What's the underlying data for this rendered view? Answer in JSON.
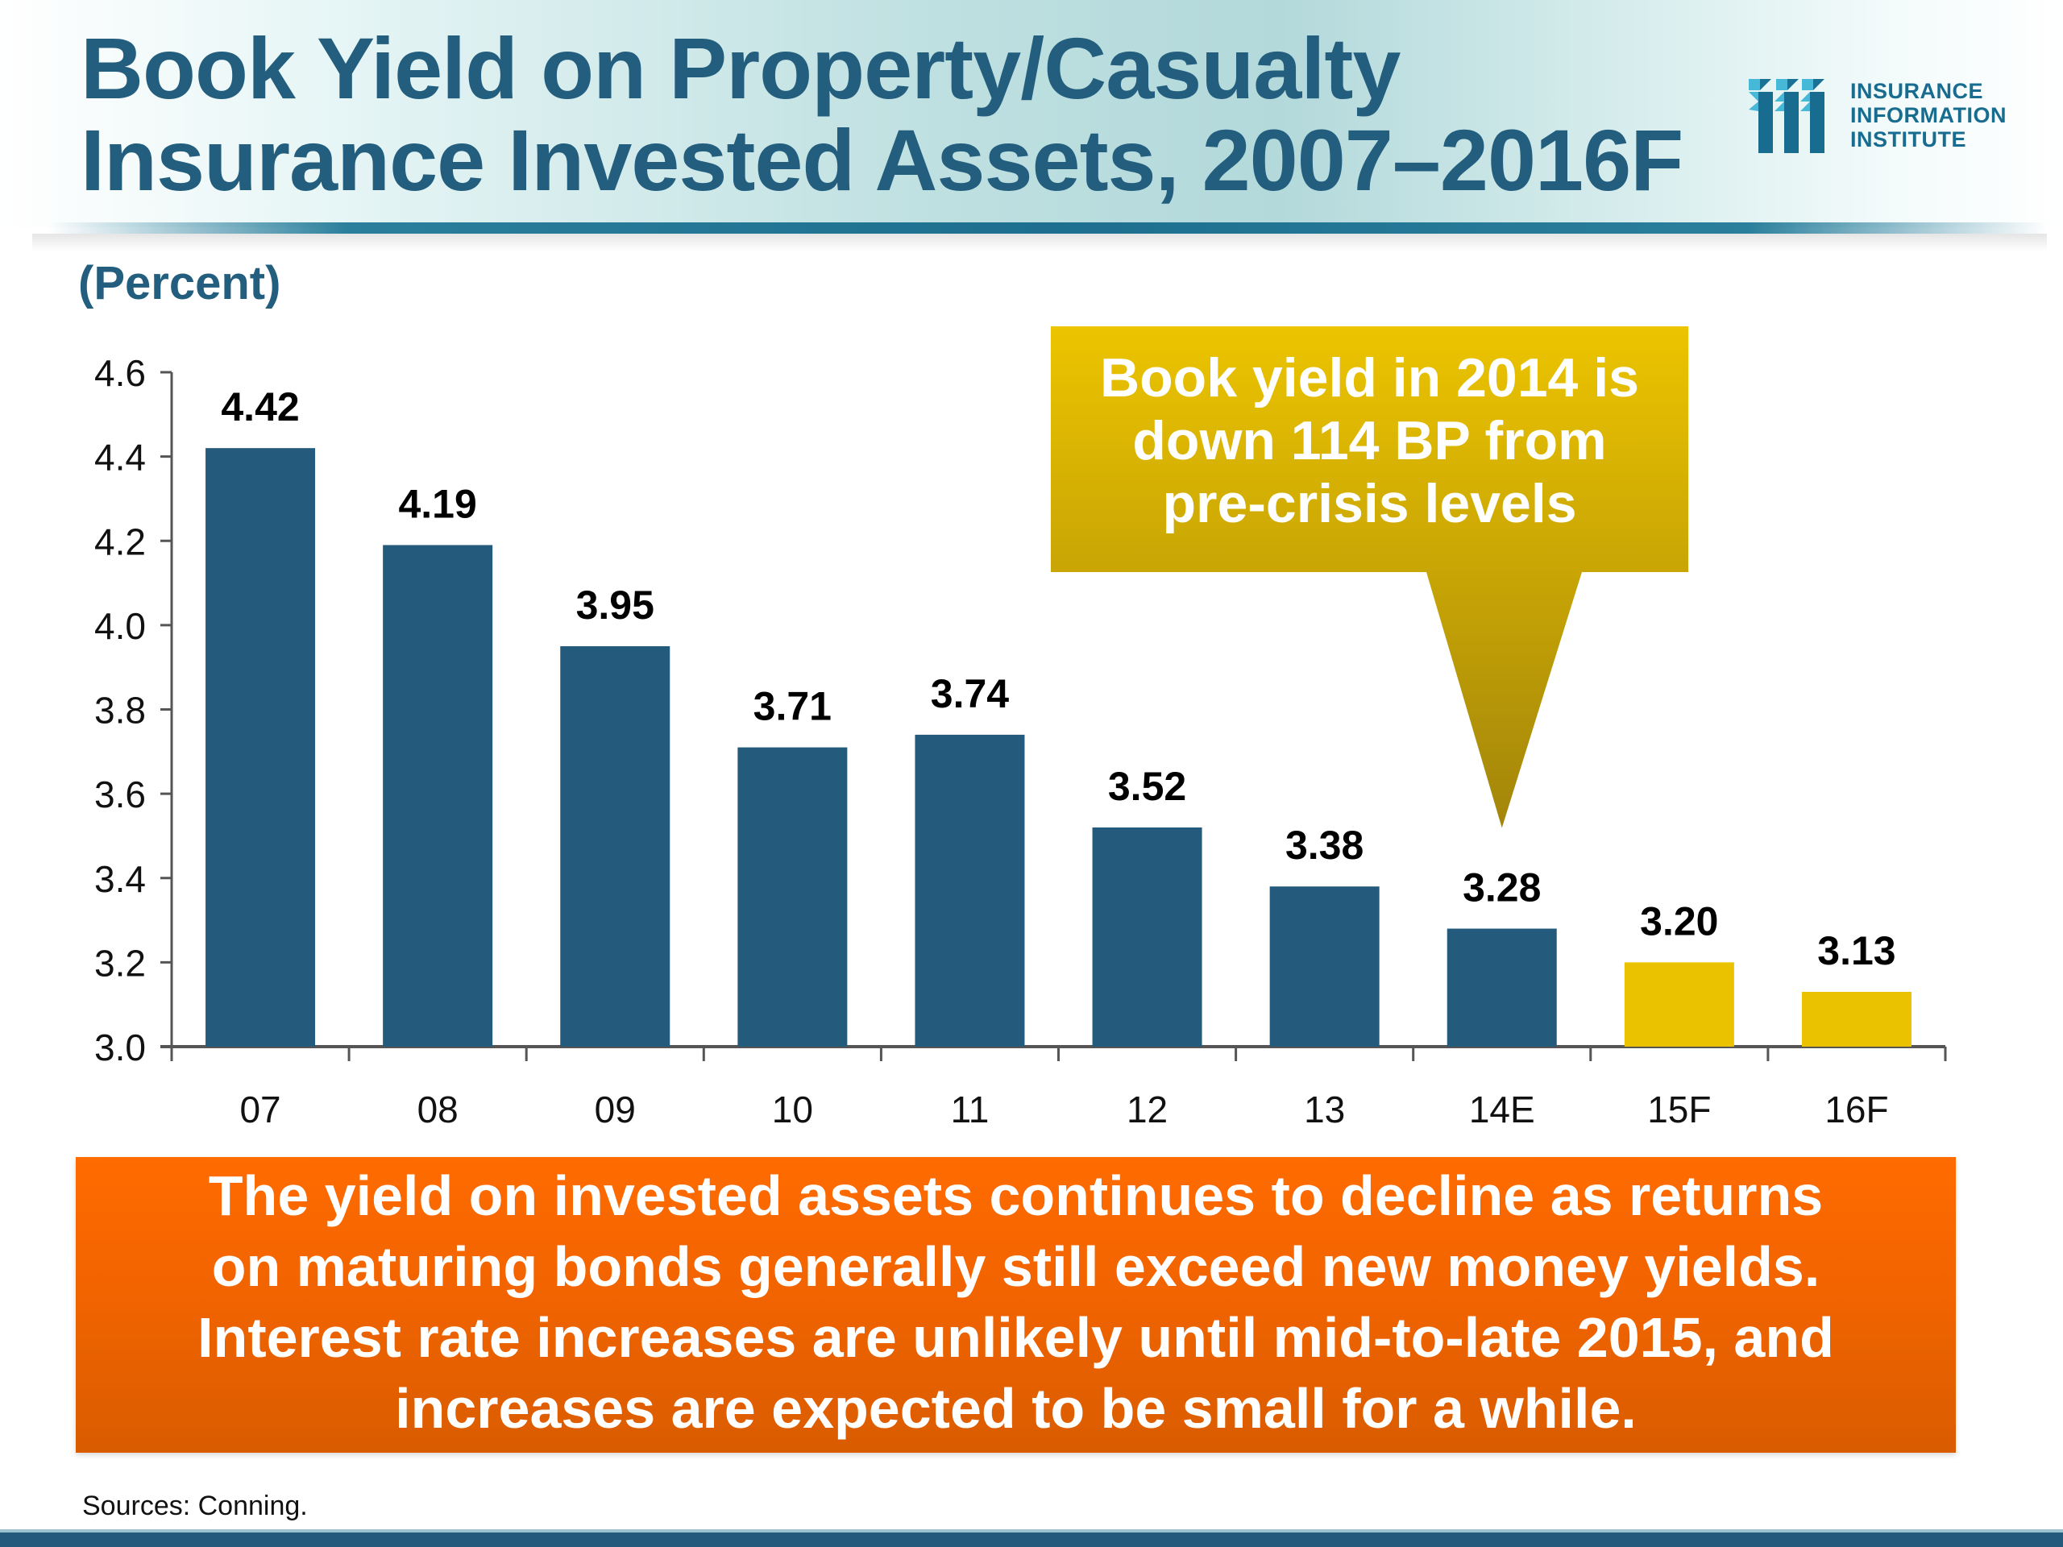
{
  "header": {
    "title_lines": [
      "Book Yield on Property/Casualty",
      "Insurance Invested Assets, 2007–2016F"
    ],
    "logo": {
      "icon": "iii-logo-icon",
      "lines": [
        "INSURANCE",
        "INFORMATION",
        "INSTITUTE"
      ]
    }
  },
  "unit_label": "(Percent)",
  "callout": {
    "lines": [
      "Book yield in 2014 is",
      "down 114 BP from",
      "pre-crisis levels"
    ],
    "points_to": "14E"
  },
  "summary": {
    "lines": [
      "The yield on invested assets continues to decline as returns",
      "on maturing bonds generally still exceed new money yields.",
      "Interest rate increases are unlikely until mid-to-late 2015, and",
      "increases are expected to be small for a while."
    ]
  },
  "source": "Sources: Conning.",
  "colors": {
    "actual": "#245b7c",
    "forecast": "#eac200",
    "callout_top": "#ecc400",
    "callout_bottom": "#a3850a",
    "summary": "#f06300",
    "title": "#235e7e"
  },
  "chart_data": {
    "type": "bar",
    "title": "Book Yield on Property/Casualty Insurance Invested Assets, 2007–2016F",
    "xlabel": "",
    "ylabel": "(Percent)",
    "categories": [
      "07",
      "08",
      "09",
      "10",
      "11",
      "12",
      "13",
      "14E",
      "15F",
      "16F"
    ],
    "values": [
      4.42,
      4.19,
      3.95,
      3.71,
      3.74,
      3.52,
      3.38,
      3.28,
      3.2,
      3.13
    ],
    "data_labels": [
      "4.42",
      "4.19",
      "3.95",
      "3.71",
      "3.74",
      "3.52",
      "3.38",
      "3.28",
      "3.20",
      "3.13"
    ],
    "series_kind": [
      "actual",
      "actual",
      "actual",
      "actual",
      "actual",
      "actual",
      "actual",
      "actual",
      "forecast",
      "forecast"
    ],
    "ylim": [
      3.0,
      4.6
    ],
    "yticks": [
      3.0,
      3.2,
      3.4,
      3.6,
      3.8,
      4.0,
      4.2,
      4.4,
      4.6
    ],
    "ytick_labels": [
      "3.0",
      "3.2",
      "3.4",
      "3.6",
      "3.8",
      "4.0",
      "4.2",
      "4.4",
      "4.6"
    ],
    "grid": false,
    "legend": "none"
  }
}
